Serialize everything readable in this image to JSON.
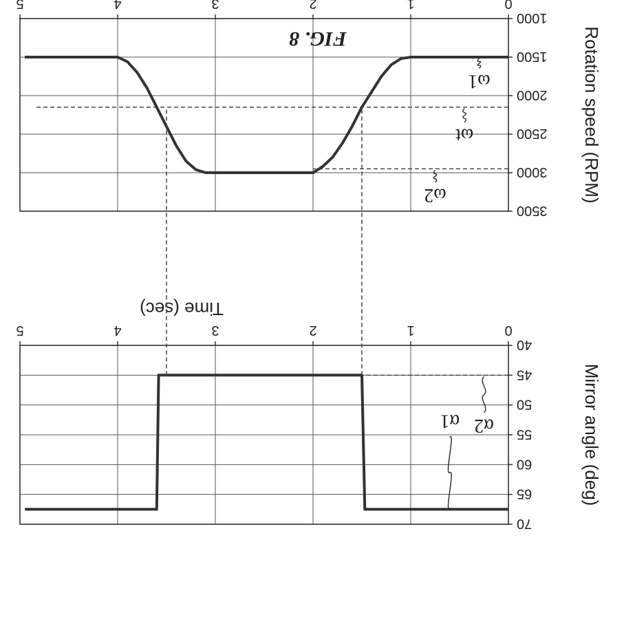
{
  "figure_label": "FIG. 8",
  "chart_data": [
    {
      "type": "line",
      "xlabel": "Time (sec)",
      "ylabel": "Rotation speed (RPM)",
      "xlim": [
        0,
        5
      ],
      "ylim": [
        1000,
        3500
      ],
      "x_ticks": [
        "0",
        "1",
        "2",
        "3",
        "4",
        "5"
      ],
      "y_ticks": [
        "1000",
        "1500",
        "2000",
        "2500",
        "3000",
        "3500"
      ],
      "grid": true,
      "series": [
        {
          "x": [
            0,
            1.0,
            1.1,
            1.2,
            1.3,
            1.4,
            1.5,
            1.6,
            1.7,
            1.8,
            1.9,
            2.0,
            3.1,
            3.2,
            3.3,
            3.4,
            3.5,
            3.6,
            3.7,
            3.8,
            3.9,
            4.0,
            4.95
          ],
          "y": [
            1500,
            1500,
            1520,
            1600,
            1750,
            1950,
            2150,
            2400,
            2620,
            2800,
            2920,
            3000,
            3000,
            2960,
            2850,
            2650,
            2400,
            2150,
            1900,
            1700,
            1560,
            1500,
            1500
          ]
        }
      ],
      "reference_lines": [
        {
          "label": "ω2",
          "y": 2950,
          "x": [
            0,
            2.0
          ]
        },
        {
          "label": "ωt",
          "y": 2150,
          "x": [
            0,
            4.85
          ]
        },
        {
          "label": "ω1",
          "y": 1500,
          "x": [
            0,
            1.0
          ]
        }
      ],
      "annotations": [
        "ω2",
        "ωt",
        "ω1"
      ]
    },
    {
      "type": "line",
      "xlabel": "Time (sec)",
      "ylabel": "Mirror angle (deg)",
      "xlim": [
        0,
        5
      ],
      "ylim": [
        40,
        70
      ],
      "x_ticks": [
        "0",
        "1",
        "2",
        "3",
        "4",
        "5"
      ],
      "y_ticks": [
        "40",
        "45",
        "50",
        "55",
        "60",
        "65",
        "70"
      ],
      "grid": true,
      "series": [
        {
          "x": [
            0,
            1.47,
            1.5,
            3.58,
            3.6,
            4.95
          ],
          "y": [
            67.5,
            67.5,
            45,
            45,
            67.5,
            67.5
          ]
        }
      ],
      "reference_lines": [
        {
          "label": "α2",
          "y": 45,
          "x": [
            0,
            1.5
          ]
        }
      ],
      "annotations": [
        "α1",
        "α2"
      ]
    }
  ],
  "connectors": [
    {
      "x": 1.5
    },
    {
      "x": 3.5
    }
  ]
}
